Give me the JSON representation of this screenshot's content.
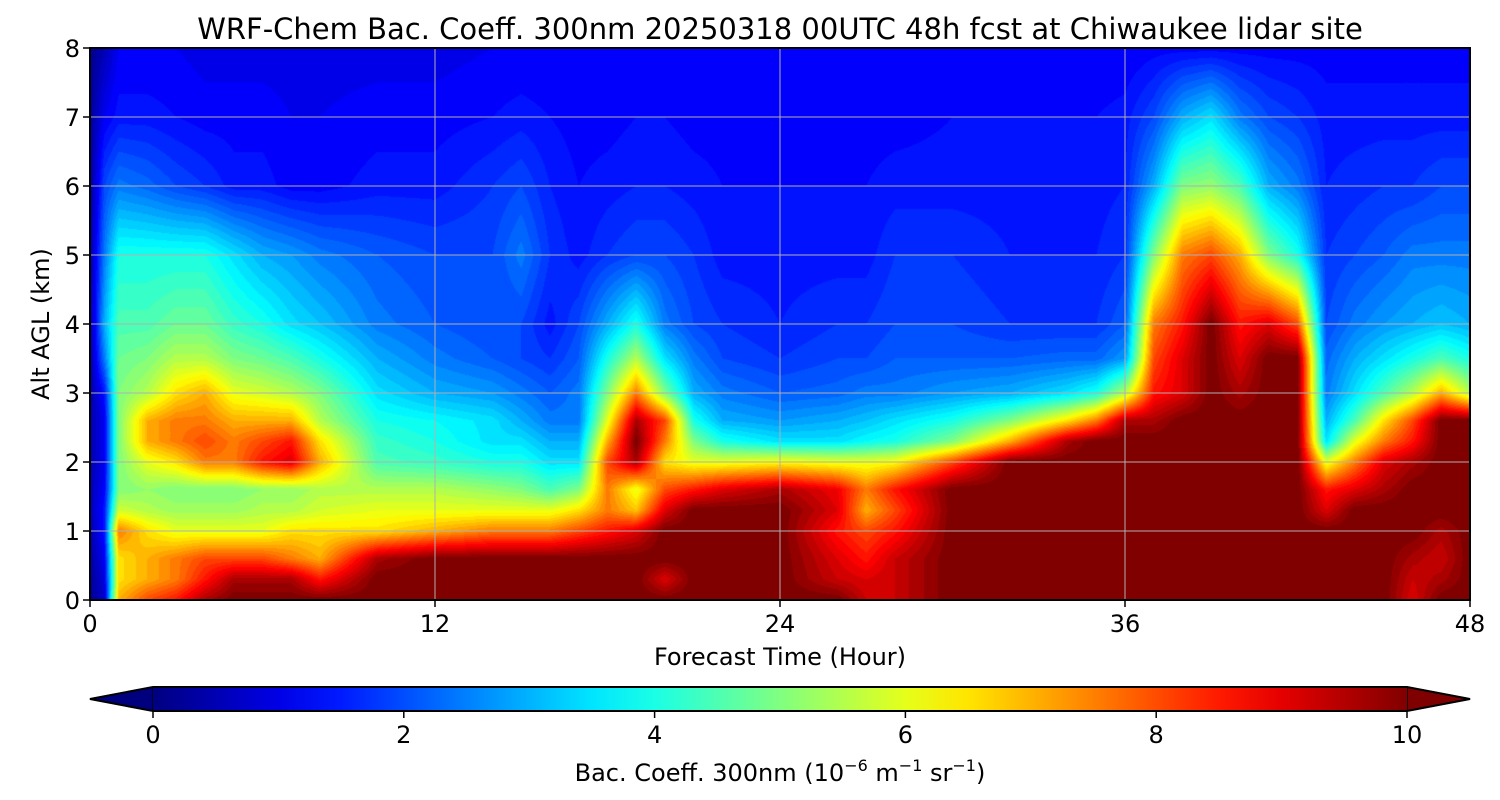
{
  "chart_data": {
    "type": "heatmap",
    "title": "WRF-Chem Bac. Coeff. 300nm  20250318 00UTC 48h fcst at Chiwaukee lidar site",
    "xlabel": "Forecast Time (Hour)",
    "ylabel": "Alt AGL (km)",
    "xlim": [
      0,
      48
    ],
    "ylim": [
      0,
      8
    ],
    "x_ticks": [
      "0",
      "12",
      "24",
      "36",
      "48"
    ],
    "y_ticks": [
      "0",
      "1",
      "2",
      "3",
      "4",
      "5",
      "6",
      "7",
      "8"
    ],
    "grid": true,
    "colormap": "jet",
    "colorbar": {
      "orientation": "horizontal",
      "placement": "bottom",
      "range": [
        0,
        10
      ],
      "extend": "both",
      "ticks": [
        "0",
        "2",
        "4",
        "6",
        "8",
        "10"
      ],
      "label": {
        "prefix": "Bac. Coeff. 300nm  (10",
        "exp1": "−6",
        "mid": " m",
        "exp2": "−1",
        "mid2": " sr",
        "exp3": "−1",
        "suffix": ")"
      }
    },
    "z_grid": {
      "x": [
        0,
        0.5,
        1,
        2,
        3,
        4,
        5,
        6,
        7,
        8,
        10,
        12,
        14,
        15,
        16,
        17,
        18,
        19,
        20,
        21,
        22,
        24,
        26,
        27,
        28,
        30,
        32,
        34,
        35,
        36,
        37,
        38,
        39,
        40,
        41,
        42,
        43,
        44,
        45,
        46,
        47,
        48
      ],
      "y": [
        0,
        0.3,
        0.6,
        1,
        1.3,
        1.6,
        2,
        2.3,
        2.6,
        3,
        3.5,
        4,
        5,
        6,
        7,
        8
      ],
      "values": [
        [
          0.3,
          0.8,
          7.0,
          8.0,
          8.5,
          9.5,
          10,
          10,
          10,
          10,
          10,
          10,
          10,
          10,
          10,
          10,
          10,
          10,
          10,
          10,
          10,
          10,
          10,
          9.2,
          9.2,
          10,
          10,
          10,
          10,
          10,
          10,
          10,
          10,
          10,
          10,
          10,
          10,
          10,
          10,
          9.0,
          10,
          10
        ],
        [
          0.3,
          1.0,
          6.5,
          7.0,
          7.5,
          8.5,
          9.5,
          9.5,
          9.5,
          8.5,
          10,
          10,
          10,
          10,
          10,
          10,
          10,
          10,
          9.0,
          10,
          10,
          10,
          9.2,
          9.0,
          9.2,
          10,
          10,
          10,
          10,
          10,
          10,
          10,
          10,
          10,
          10,
          10,
          10,
          10,
          10,
          9.2,
          9.5,
          10
        ],
        [
          0.4,
          1.2,
          6.5,
          7.0,
          7.5,
          8.0,
          8.0,
          8.0,
          7.5,
          7.0,
          9.5,
          10,
          10,
          10,
          10,
          10,
          10,
          10,
          10,
          10,
          10,
          10,
          9.0,
          8.5,
          9.2,
          10,
          10,
          10,
          10,
          10,
          10,
          10,
          10,
          10,
          10,
          10,
          10,
          10,
          10,
          9.5,
          9.2,
          10
        ],
        [
          0.5,
          1.5,
          7.5,
          6.5,
          6.0,
          6.0,
          6.0,
          6.0,
          6.5,
          6.5,
          6.5,
          7.0,
          7.5,
          7.5,
          7.5,
          8.0,
          8.5,
          9.0,
          10,
          10,
          10,
          10,
          8.5,
          8.0,
          8.5,
          10,
          10,
          10,
          10,
          10,
          10,
          10,
          10,
          10,
          10,
          10,
          10,
          10,
          10,
          10,
          9.5,
          10
        ],
        [
          0.6,
          1.5,
          5.8,
          5.5,
          5.3,
          5.3,
          5.3,
          5.5,
          5.5,
          5.8,
          6.0,
          6.0,
          6.0,
          6.0,
          6.0,
          6.5,
          7.5,
          6.8,
          9.0,
          10,
          10,
          10,
          9.0,
          7.0,
          8.0,
          10,
          10,
          10,
          10,
          10,
          10,
          10,
          10,
          10,
          10,
          10,
          9.0,
          10,
          10,
          10,
          10,
          10
        ],
        [
          0.6,
          1.3,
          5.0,
          5.2,
          5.0,
          5.0,
          5.0,
          5.2,
          5.2,
          5.5,
          5.5,
          5.5,
          5.2,
          5.0,
          4.5,
          5.0,
          7.5,
          6.0,
          8.0,
          8.5,
          9.0,
          9.5,
          8.8,
          7.5,
          8.5,
          10,
          10,
          10,
          10,
          10,
          10,
          10,
          10,
          10,
          10,
          10,
          8.5,
          9.0,
          9.5,
          10,
          10,
          10
        ],
        [
          0.5,
          1.2,
          5.0,
          6.0,
          6.5,
          7.5,
          7.5,
          8.5,
          9.0,
          7.0,
          4.5,
          4.3,
          4.0,
          4.0,
          3.5,
          3.5,
          8.0,
          9.5,
          6.5,
          6.0,
          6.0,
          6.2,
          6.0,
          6.0,
          6.2,
          8.0,
          10,
          10,
          10,
          10,
          10,
          10,
          10,
          10,
          10,
          10,
          6.0,
          7.5,
          9.0,
          9.5,
          10,
          10
        ],
        [
          0.5,
          1.2,
          5.0,
          7.0,
          7.5,
          8.0,
          7.5,
          8.0,
          8.5,
          6.5,
          4.3,
          4.0,
          3.5,
          3.5,
          3.0,
          3.0,
          7.0,
          10,
          7.5,
          5.0,
          4.0,
          3.5,
          3.5,
          3.8,
          4.0,
          5.0,
          7.0,
          9.5,
          10,
          10,
          10,
          10,
          10,
          10,
          10,
          10,
          3.5,
          6.0,
          7.5,
          8.5,
          10,
          10
        ],
        [
          0.5,
          1.2,
          5.0,
          7.0,
          7.5,
          7.5,
          7.0,
          7.0,
          7.0,
          5.5,
          4.0,
          3.8,
          3.5,
          3.0,
          2.5,
          2.5,
          6.0,
          9.5,
          8.0,
          4.0,
          3.0,
          2.8,
          3.0,
          3.2,
          3.5,
          4.0,
          5.0,
          6.5,
          7.5,
          9.5,
          9.5,
          10,
          10,
          10,
          10,
          10,
          3.0,
          4.5,
          6.5,
          8.0,
          10,
          10
        ],
        [
          0.4,
          1.5,
          5.0,
          5.5,
          6.5,
          7.0,
          6.0,
          5.8,
          5.5,
          5.0,
          3.5,
          3.0,
          2.8,
          2.5,
          2.2,
          2.5,
          5.0,
          7.5,
          5.0,
          3.0,
          2.5,
          2.2,
          2.3,
          2.5,
          2.5,
          2.8,
          3.0,
          3.5,
          4.0,
          5.5,
          8.5,
          9.0,
          10,
          9.5,
          10,
          10,
          2.5,
          3.5,
          4.5,
          5.5,
          7.0,
          5.5
        ],
        [
          0.4,
          2.5,
          4.8,
          5.0,
          5.5,
          5.5,
          5.0,
          4.8,
          4.5,
          4.0,
          3.0,
          2.5,
          2.2,
          2.0,
          1.8,
          2.2,
          4.0,
          5.5,
          3.5,
          2.5,
          2.0,
          1.8,
          2.0,
          2.0,
          2.2,
          2.2,
          2.2,
          2.3,
          2.3,
          2.8,
          8.0,
          9.0,
          10,
          9.0,
          10,
          10,
          2.3,
          3.0,
          3.5,
          4.0,
          4.5,
          4.0
        ],
        [
          0.4,
          3.0,
          4.5,
          4.5,
          4.8,
          4.8,
          4.3,
          4.0,
          3.5,
          3.2,
          2.5,
          2.2,
          2.0,
          2.0,
          1.5,
          2.0,
          3.0,
          4.0,
          2.5,
          2.0,
          1.8,
          1.6,
          1.8,
          1.8,
          2.0,
          2.0,
          1.8,
          1.8,
          1.8,
          2.2,
          7.5,
          8.5,
          10,
          8.5,
          9.0,
          8.0,
          2.0,
          2.5,
          2.8,
          3.0,
          3.2,
          3.0
        ],
        [
          0.4,
          2.5,
          4.0,
          4.0,
          4.0,
          4.0,
          3.5,
          3.0,
          2.8,
          2.5,
          2.2,
          2.0,
          2.0,
          2.5,
          1.8,
          1.5,
          1.8,
          2.0,
          2.0,
          1.8,
          1.5,
          1.5,
          1.5,
          1.5,
          1.8,
          1.8,
          1.6,
          1.6,
          1.6,
          1.8,
          5.0,
          7.5,
          8.0,
          7.0,
          5.0,
          4.0,
          1.8,
          2.0,
          2.2,
          2.5,
          2.5,
          2.5
        ],
        [
          0.3,
          2.0,
          2.5,
          2.3,
          2.0,
          1.8,
          1.5,
          1.5,
          1.3,
          1.3,
          1.5,
          1.5,
          1.8,
          2.0,
          1.6,
          1.4,
          1.5,
          1.6,
          1.6,
          1.5,
          1.4,
          1.4,
          1.4,
          1.4,
          1.5,
          1.5,
          1.5,
          1.5,
          1.5,
          1.6,
          3.0,
          5.0,
          5.2,
          4.5,
          3.0,
          2.5,
          1.6,
          1.7,
          1.8,
          1.8,
          2.0,
          2.0
        ],
        [
          0.3,
          1.2,
          1.5,
          1.5,
          1.4,
          1.3,
          1.3,
          1.3,
          1.2,
          1.2,
          1.3,
          1.3,
          1.4,
          1.5,
          1.4,
          1.3,
          1.3,
          1.4,
          1.4,
          1.3,
          1.3,
          1.3,
          1.3,
          1.3,
          1.3,
          1.4,
          1.4,
          1.4,
          1.4,
          1.5,
          2.0,
          3.0,
          3.5,
          2.5,
          2.0,
          1.8,
          1.5,
          1.5,
          1.5,
          1.5,
          1.5,
          1.5
        ],
        [
          0.2,
          0.6,
          1.2,
          1.2,
          1.2,
          1.1,
          1.1,
          1.1,
          1.1,
          1.1,
          1.1,
          1.1,
          1.2,
          1.2,
          1.2,
          1.2,
          1.2,
          1.2,
          1.2,
          1.2,
          1.2,
          1.2,
          1.2,
          1.2,
          1.2,
          1.2,
          1.2,
          1.2,
          1.2,
          1.2,
          1.3,
          1.3,
          1.3,
          1.3,
          1.3,
          1.3,
          1.3,
          1.3,
          1.3,
          1.3,
          1.3,
          1.3
        ]
      ]
    }
  }
}
